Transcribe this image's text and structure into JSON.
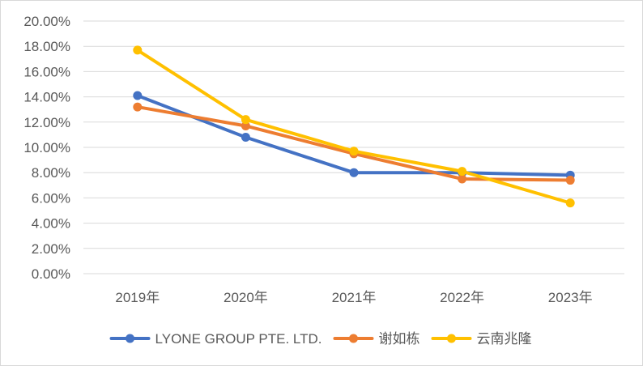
{
  "chart_data": {
    "type": "line",
    "title": "",
    "xlabel": "",
    "ylabel": "",
    "categories": [
      "2019年",
      "2020年",
      "2021年",
      "2022年",
      "2023年"
    ],
    "ylim": [
      0,
      20
    ],
    "yticks": [
      "0.00%",
      "2.00%",
      "4.00%",
      "6.00%",
      "8.00%",
      "10.00%",
      "12.00%",
      "14.00%",
      "16.00%",
      "18.00%",
      "20.00%"
    ],
    "grid": true,
    "legend_position": "bottom",
    "series": [
      {
        "name": "LYONE GROUP PTE. LTD.",
        "color": "#4472C4",
        "values": [
          14.1,
          10.8,
          8.0,
          8.0,
          7.8
        ]
      },
      {
        "name": "谢如栋",
        "color": "#ED7D31",
        "values": [
          13.2,
          11.7,
          9.5,
          7.5,
          7.4
        ]
      },
      {
        "name": "云南兆隆",
        "color": "#FFC000",
        "values": [
          17.7,
          12.2,
          9.7,
          8.1,
          5.6
        ]
      }
    ]
  }
}
